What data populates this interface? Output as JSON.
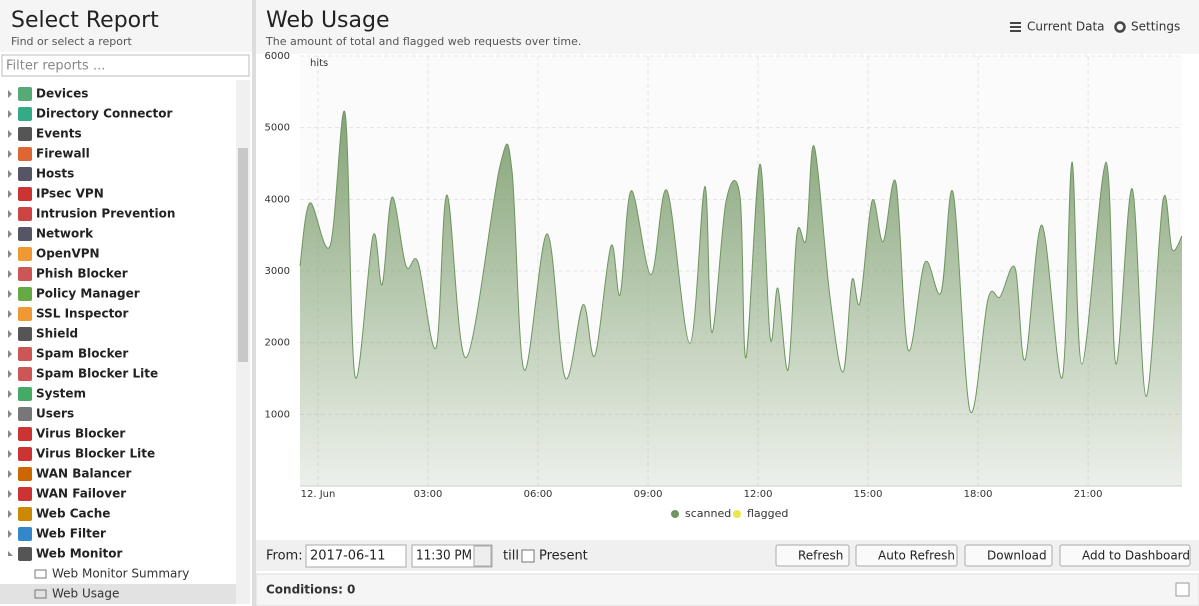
{
  "sidebar": {
    "title": "Select Report",
    "subtitle": "Find or select a report",
    "filter_placeholder": "Filter reports ...",
    "items": [
      "Devices",
      "Directory Connector",
      "Events",
      "Firewall",
      "Hosts",
      "IPsec VPN",
      "Intrusion Prevention",
      "Network",
      "OpenVPN",
      "Phish Blocker",
      "Policy Manager",
      "SSL Inspector",
      "Shield",
      "Spam Blocker",
      "Spam Blocker Lite",
      "System",
      "Users",
      "Virus Blocker",
      "Virus Blocker Lite",
      "WAN Balancer",
      "WAN Failover",
      "Web Cache",
      "Web Filter",
      "Web Monitor"
    ],
    "children": [
      "Web Monitor Summary",
      "Web Usage"
    ]
  },
  "header": {
    "title": "Web Usage",
    "subtitle": "The amount of total and flagged web requests over time.",
    "buttons": [
      "Current Data",
      "Settings"
    ]
  },
  "chart_data": {
    "type": "area",
    "ylabel": "hits",
    "ylim": [
      0,
      6000
    ],
    "yticks": [
      1000,
      2000,
      3000,
      4000,
      5000,
      6000
    ],
    "grid": true,
    "xlim": [
      -0.49,
      23.56
    ],
    "xticks": [
      {
        "value": 0,
        "label": "12. Jun"
      },
      {
        "value": 3,
        "label": "03:00"
      },
      {
        "value": 6,
        "label": "06:00"
      },
      {
        "value": 9,
        "label": "09:00"
      },
      {
        "value": 12,
        "label": "12:00"
      },
      {
        "value": 15,
        "label": "15:00"
      },
      {
        "value": 18,
        "label": "18:00"
      },
      {
        "value": 21,
        "label": "21:00"
      }
    ],
    "legend": "bottom",
    "series": [
      {
        "name": "scanned",
        "color": "#6e9460",
        "x": [
          -0.49,
          -0.22,
          0.33,
          0.74,
          1.01,
          1.5,
          1.75,
          2.02,
          2.4,
          2.73,
          3.22,
          3.52,
          4.04,
          4.96,
          5.29,
          5.62,
          6.25,
          6.74,
          7.23,
          7.55,
          7.99,
          8.24,
          8.54,
          9.08,
          9.52,
          10.14,
          10.55,
          10.74,
          11.13,
          11.51,
          11.67,
          12.05,
          12.33,
          12.54,
          12.82,
          13.06,
          13.31,
          13.53,
          13.96,
          14.32,
          14.56,
          14.78,
          15.11,
          15.41,
          15.76,
          16.09,
          16.55,
          16.99,
          17.32,
          17.78,
          18.27,
          18.6,
          19.01,
          19.28,
          19.74,
          20.29,
          20.56,
          20.83,
          21.49,
          21.76,
          22.2,
          22.58,
          23.04,
          23.29,
          23.56
        ],
        "values": [
          3070,
          3950,
          3350,
          5200,
          1530,
          3490,
          2810,
          4030,
          3070,
          3120,
          1930,
          4060,
          1790,
          4460,
          4400,
          1620,
          3520,
          1510,
          2530,
          1820,
          3350,
          2670,
          4120,
          2950,
          4120,
          1990,
          4180,
          2140,
          3980,
          4030,
          1790,
          4490,
          2070,
          2760,
          1620,
          3520,
          3440,
          4740,
          2640,
          1590,
          2870,
          2560,
          3980,
          3410,
          4230,
          1900,
          3120,
          2700,
          4090,
          1050,
          2610,
          2640,
          3040,
          1760,
          3640,
          1510,
          4520,
          1700,
          4520,
          1700,
          4150,
          1250,
          3980,
          3300,
          3490
        ]
      },
      {
        "name": "flagged",
        "color": "#e8e84a",
        "x": [
          -0.49,
          23.56
        ],
        "values": [
          0,
          0
        ]
      }
    ]
  },
  "toolbar": {
    "from_label": "From:",
    "date": "2017-06-11",
    "time": "11:30 PM",
    "till_label": "till",
    "present_label": "Present",
    "buttons": [
      "Refresh",
      "Auto Refresh",
      "Download",
      "Add to Dashboard"
    ]
  },
  "conditions": {
    "label": "Conditions: 0"
  }
}
